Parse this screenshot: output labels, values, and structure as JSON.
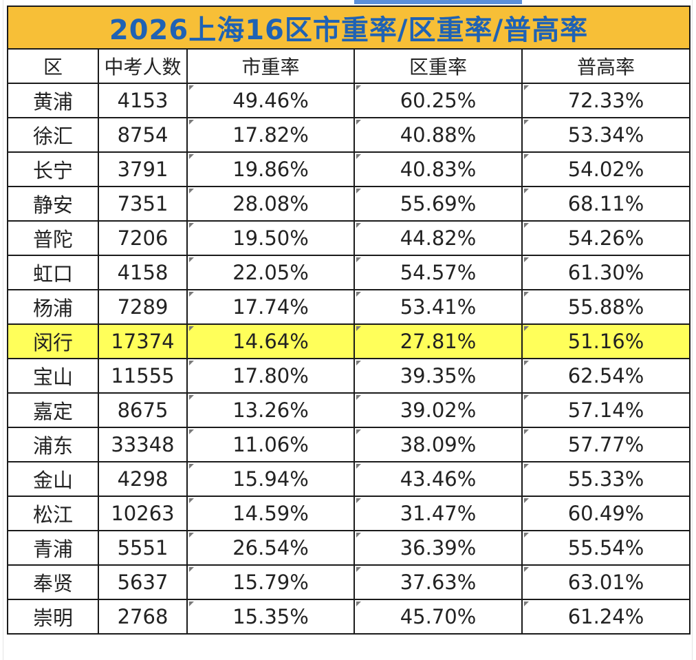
{
  "title": "2026上海16区市重率/区重率/普高率",
  "headers": [
    "区",
    "中考人数",
    "市重率",
    "区重率",
    "普高率"
  ],
  "rows": [
    {
      "district": "黄浦",
      "students": "4153",
      "city_rate": "49.46%",
      "district_rate": "60.25%",
      "high_rate": "72.33%"
    },
    {
      "district": "徐汇",
      "students": "8754",
      "city_rate": "17.82%",
      "district_rate": "40.88%",
      "high_rate": "53.34%"
    },
    {
      "district": "长宁",
      "students": "3791",
      "city_rate": "19.86%",
      "district_rate": "40.83%",
      "high_rate": "54.02%"
    },
    {
      "district": "静安",
      "students": "7351",
      "city_rate": "28.08%",
      "district_rate": "55.69%",
      "high_rate": "68.11%"
    },
    {
      "district": "普陀",
      "students": "7206",
      "city_rate": "19.50%",
      "district_rate": "44.82%",
      "high_rate": "54.26%"
    },
    {
      "district": "虹口",
      "students": "4158",
      "city_rate": "22.05%",
      "district_rate": "54.57%",
      "high_rate": "61.30%"
    },
    {
      "district": "杨浦",
      "students": "7289",
      "city_rate": "17.74%",
      "district_rate": "53.41%",
      "high_rate": "55.88%"
    },
    {
      "district": "闵行",
      "students": "17374",
      "city_rate": "14.64%",
      "district_rate": "27.81%",
      "high_rate": "51.16%",
      "highlighted": true
    },
    {
      "district": "宝山",
      "students": "11555",
      "city_rate": "17.80%",
      "district_rate": "39.35%",
      "high_rate": "62.54%"
    },
    {
      "district": "嘉定",
      "students": "8675",
      "city_rate": "13.26%",
      "district_rate": "39.02%",
      "high_rate": "57.14%"
    },
    {
      "district": "浦东",
      "students": "33348",
      "city_rate": "11.06%",
      "district_rate": "38.09%",
      "high_rate": "57.77%"
    },
    {
      "district": "金山",
      "students": "4298",
      "city_rate": "15.94%",
      "district_rate": "43.46%",
      "high_rate": "55.33%"
    },
    {
      "district": "松江",
      "students": "10263",
      "city_rate": "14.59%",
      "district_rate": "31.47%",
      "high_rate": "60.49%"
    },
    {
      "district": "青浦",
      "students": "5551",
      "city_rate": "26.54%",
      "district_rate": "36.39%",
      "high_rate": "55.54%"
    },
    {
      "district": "奉贤",
      "students": "5637",
      "city_rate": "15.79%",
      "district_rate": "37.63%",
      "high_rate": "63.01%"
    },
    {
      "district": "崇明",
      "students": "2768",
      "city_rate": "15.35%",
      "district_rate": "45.70%",
      "high_rate": "61.24%"
    }
  ],
  "colors": {
    "title_bg": "#f7bf37",
    "title_text": "#1f62b4",
    "highlight_row": "#ffff5a",
    "selection": "#5b8fd9"
  }
}
